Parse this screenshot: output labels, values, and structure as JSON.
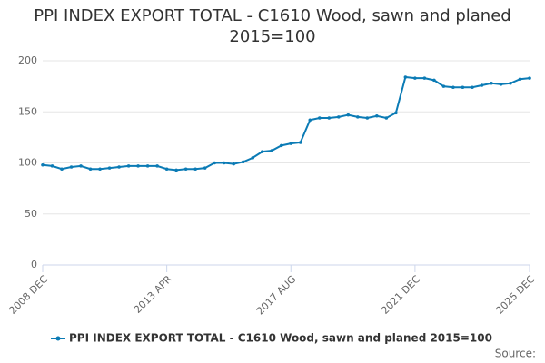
{
  "chart_data": {
    "type": "line",
    "title": "PPI INDEX EXPORT TOTAL - C1610 Wood, sawn and planed 2015=100",
    "categories": [
      "2008 DEC",
      null,
      null,
      null,
      null,
      null,
      null,
      null,
      null,
      null,
      null,
      null,
      null,
      "2013 APR",
      null,
      null,
      null,
      null,
      null,
      null,
      null,
      null,
      null,
      null,
      null,
      null,
      "2017 AUG",
      null,
      null,
      null,
      null,
      null,
      null,
      null,
      null,
      null,
      null,
      null,
      null,
      "2021 DEC",
      null,
      null,
      null,
      null,
      null,
      null,
      null,
      null,
      null,
      null,
      null,
      "2025 DEC"
    ],
    "series": [
      {
        "name": "PPI INDEX EXPORT TOTAL - C1610 Wood, sawn and planed 2015=100",
        "color": "#0b7bb5",
        "values": [
          98,
          97,
          94,
          96,
          97,
          94,
          94,
          95,
          96,
          97,
          97,
          97,
          97,
          94,
          93,
          94,
          94,
          95,
          100,
          100,
          99,
          101,
          105,
          111,
          112,
          117,
          119,
          120,
          142,
          144,
          144,
          145,
          147,
          145,
          144,
          146,
          144,
          149,
          184,
          183,
          183,
          181,
          175,
          174,
          174,
          174,
          176,
          178,
          177,
          178,
          182,
          183
        ]
      }
    ],
    "ylim": [
      0,
      200
    ],
    "yticks": [
      0,
      50,
      100,
      150,
      200
    ],
    "grid": true,
    "source": "Source:"
  }
}
